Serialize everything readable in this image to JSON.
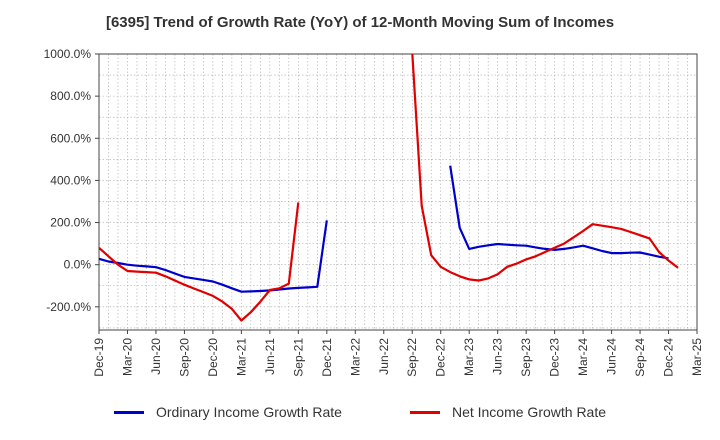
{
  "title": "[6395]  Trend of Growth Rate (YoY) of 12-Month Moving Sum of Incomes",
  "chart_data": {
    "type": "line",
    "title": "[6395]  Trend of Growth Rate (YoY) of 12-Month Moving Sum of Incomes",
    "xlabel": "",
    "ylabel": "",
    "ylim": [
      -310,
      1000
    ],
    "y_ticks": [
      -200,
      0,
      200,
      400,
      600,
      800,
      1000
    ],
    "y_tick_labels": [
      "-200.0%",
      "0.0%",
      "200.0%",
      "400.0%",
      "600.0%",
      "800.0%",
      "1000.0%"
    ],
    "x_tick_labels": [
      "Dec-19",
      "Mar-20",
      "Jun-20",
      "Sep-20",
      "Dec-20",
      "Mar-21",
      "Jun-21",
      "Sep-21",
      "Dec-21",
      "Mar-22",
      "Jun-22",
      "Sep-22",
      "Dec-22",
      "Mar-23",
      "Jun-23",
      "Sep-23",
      "Dec-23",
      "Mar-24",
      "Jun-24",
      "Sep-24",
      "Dec-24",
      "Mar-25"
    ],
    "x_start": "2019-12",
    "x_end": "2025-03",
    "grid": true,
    "legend_position": "bottom",
    "series": [
      {
        "name": "Ordinary Income Growth Rate",
        "color": "#0000cc",
        "points": [
          [
            "2019-12",
            28
          ],
          [
            "2020-01",
            15
          ],
          [
            "2020-02",
            8
          ],
          [
            "2020-03",
            0
          ],
          [
            "2020-04",
            -5
          ],
          [
            "2020-05",
            -8
          ],
          [
            "2020-06",
            -12
          ],
          [
            "2020-07",
            -25
          ],
          [
            "2020-08",
            -42
          ],
          [
            "2020-09",
            -58
          ],
          [
            "2020-10",
            -65
          ],
          [
            "2020-11",
            -72
          ],
          [
            "2020-12",
            -80
          ],
          [
            "2021-01",
            -95
          ],
          [
            "2021-02",
            -112
          ],
          [
            "2021-03",
            -128
          ],
          [
            "2021-04",
            -127
          ],
          [
            "2021-05",
            -125
          ],
          [
            "2021-06",
            -122
          ],
          [
            "2021-07",
            -118
          ],
          [
            "2021-08",
            -113
          ],
          [
            "2021-09",
            -110
          ],
          [
            "2021-10",
            -108
          ],
          [
            "2021-11",
            -105
          ],
          [
            "2021-12",
            210
          ],
          [
            "2022-12",
            null
          ],
          [
            "2023-01",
            470
          ],
          [
            "2023-02",
            175
          ],
          [
            "2023-03",
            75
          ],
          [
            "2023-04",
            85
          ],
          [
            "2023-05",
            92
          ],
          [
            "2023-06",
            98
          ],
          [
            "2023-07",
            95
          ],
          [
            "2023-08",
            92
          ],
          [
            "2023-09",
            90
          ],
          [
            "2023-10",
            82
          ],
          [
            "2023-11",
            75
          ],
          [
            "2023-12",
            70
          ],
          [
            "2024-01",
            75
          ],
          [
            "2024-02",
            82
          ],
          [
            "2024-03",
            90
          ],
          [
            "2024-04",
            78
          ],
          [
            "2024-05",
            65
          ],
          [
            "2024-06",
            55
          ],
          [
            "2024-07",
            55
          ],
          [
            "2024-08",
            57
          ],
          [
            "2024-09",
            58
          ],
          [
            "2024-10",
            48
          ],
          [
            "2024-11",
            38
          ],
          [
            "2024-12",
            30
          ]
        ]
      },
      {
        "name": "Net Income Growth Rate",
        "color": "#e00000",
        "points": [
          [
            "2019-12",
            80
          ],
          [
            "2020-01",
            40
          ],
          [
            "2020-02",
            0
          ],
          [
            "2020-03",
            -30
          ],
          [
            "2020-04",
            -33
          ],
          [
            "2020-05",
            -35
          ],
          [
            "2020-06",
            -38
          ],
          [
            "2020-07",
            -55
          ],
          [
            "2020-08",
            -75
          ],
          [
            "2020-09",
            -95
          ],
          [
            "2020-10",
            -113
          ],
          [
            "2020-11",
            -130
          ],
          [
            "2020-12",
            -148
          ],
          [
            "2021-01",
            -175
          ],
          [
            "2021-02",
            -210
          ],
          [
            "2021-03",
            -265
          ],
          [
            "2021-04",
            -225
          ],
          [
            "2021-05",
            -175
          ],
          [
            "2021-06",
            -120
          ],
          [
            "2021-07",
            -112
          ],
          [
            "2021-08",
            -90
          ],
          [
            "2021-09",
            295
          ],
          [
            "2021-10",
            null
          ],
          [
            "2022-09",
            1010
          ],
          [
            "2022-10",
            280
          ],
          [
            "2022-11",
            45
          ],
          [
            "2022-12",
            -10
          ],
          [
            "2023-01",
            -35
          ],
          [
            "2023-02",
            -55
          ],
          [
            "2023-03",
            -70
          ],
          [
            "2023-04",
            -75
          ],
          [
            "2023-05",
            -65
          ],
          [
            "2023-06",
            -45
          ],
          [
            "2023-07",
            -10
          ],
          [
            "2023-08",
            5
          ],
          [
            "2023-09",
            25
          ],
          [
            "2023-10",
            40
          ],
          [
            "2023-11",
            60
          ],
          [
            "2023-12",
            80
          ],
          [
            "2024-01",
            100
          ],
          [
            "2024-02",
            130
          ],
          [
            "2024-03",
            160
          ],
          [
            "2024-04",
            192
          ],
          [
            "2024-05",
            185
          ],
          [
            "2024-06",
            178
          ],
          [
            "2024-07",
            170
          ],
          [
            "2024-08",
            155
          ],
          [
            "2024-09",
            140
          ],
          [
            "2024-10",
            125
          ],
          [
            "2024-11",
            60
          ],
          [
            "2024-12",
            20
          ],
          [
            "2025-01",
            -15
          ]
        ]
      }
    ]
  }
}
